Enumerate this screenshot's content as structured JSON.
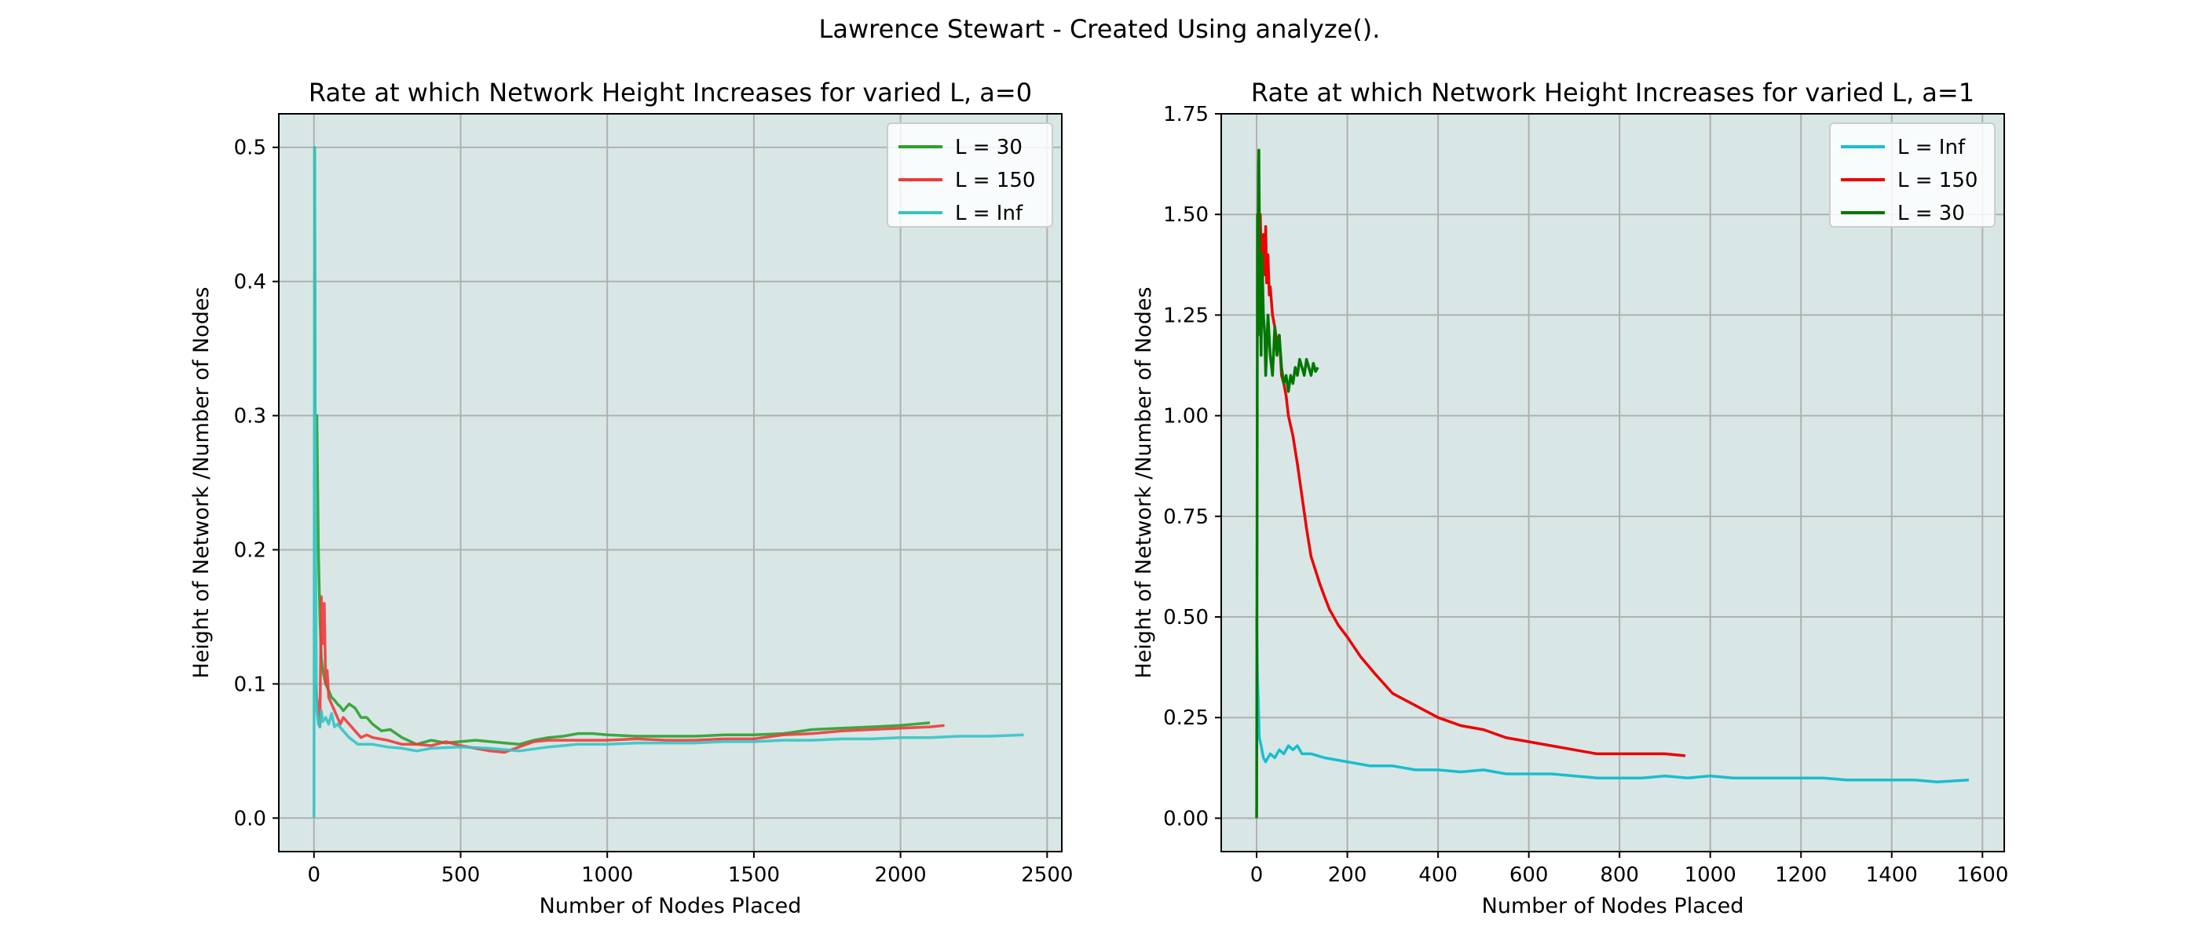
{
  "figure": {
    "suptitle": "Lawrence Stewart - Created Using analyze()."
  },
  "chart_data": [
    {
      "type": "line",
      "title": "Rate at which Network Height Increases for varied L, a=0",
      "xlabel": "Number of Nodes Placed",
      "ylabel": "Height of Network /Number of Nodes",
      "xlim": [
        -120,
        2550
      ],
      "ylim": [
        -0.025,
        0.525
      ],
      "xticks": [
        0,
        500,
        1000,
        1500,
        2000,
        2500
      ],
      "xtick_labels": [
        "0",
        "500",
        "1000",
        "1500",
        "2000",
        "2500"
      ],
      "yticks": [
        0.0,
        0.1,
        0.2,
        0.3,
        0.4,
        0.5
      ],
      "ytick_labels": [
        "0.0",
        "0.1",
        "0.2",
        "0.3",
        "0.4",
        "0.5"
      ],
      "grid": true,
      "facecolor": "#d8e6e6",
      "legend_position": "upper right",
      "series": [
        {
          "name": "L = 30",
          "color": "#2ca02c",
          "x": [
            0,
            2,
            4,
            6,
            10,
            15,
            20,
            25,
            30,
            40,
            50,
            60,
            70,
            80,
            90,
            100,
            120,
            140,
            160,
            180,
            200,
            230,
            260,
            300,
            350,
            400,
            450,
            500,
            550,
            600,
            650,
            700,
            750,
            800,
            850,
            900,
            950,
            1000,
            1100,
            1200,
            1300,
            1400,
            1500,
            1600,
            1700,
            1800,
            1900,
            2000,
            2100
          ],
          "y": [
            0.5,
            0.5,
            0.3,
            0.3,
            0.3,
            0.2,
            0.15,
            0.12,
            0.11,
            0.1,
            0.095,
            0.09,
            0.088,
            0.085,
            0.083,
            0.08,
            0.085,
            0.082,
            0.075,
            0.075,
            0.07,
            0.065,
            0.066,
            0.06,
            0.055,
            0.058,
            0.056,
            0.057,
            0.058,
            0.057,
            0.056,
            0.055,
            0.058,
            0.06,
            0.061,
            0.063,
            0.063,
            0.062,
            0.061,
            0.061,
            0.061,
            0.062,
            0.062,
            0.063,
            0.066,
            0.067,
            0.068,
            0.069,
            0.071
          ]
        },
        {
          "name": "L = 150",
          "color": "#ef3a3a",
          "x": [
            5,
            10,
            15,
            20,
            25,
            30,
            35,
            40,
            45,
            50,
            60,
            70,
            80,
            90,
            100,
            120,
            140,
            160,
            180,
            200,
            250,
            300,
            350,
            400,
            450,
            500,
            550,
            600,
            650,
            700,
            750,
            800,
            900,
            1000,
            1100,
            1200,
            1300,
            1400,
            1500,
            1600,
            1700,
            1800,
            1900,
            2000,
            2100,
            2150
          ],
          "y": [
            0.1,
            0.09,
            0.08,
            0.068,
            0.165,
            0.13,
            0.16,
            0.1,
            0.11,
            0.09,
            0.085,
            0.08,
            0.075,
            0.07,
            0.075,
            0.07,
            0.065,
            0.06,
            0.062,
            0.06,
            0.058,
            0.055,
            0.055,
            0.054,
            0.057,
            0.054,
            0.052,
            0.05,
            0.049,
            0.053,
            0.057,
            0.058,
            0.058,
            0.058,
            0.059,
            0.058,
            0.058,
            0.059,
            0.059,
            0.062,
            0.063,
            0.065,
            0.066,
            0.067,
            0.068,
            0.069
          ]
        },
        {
          "name": "L = Inf",
          "color": "#34c4c4",
          "x": [
            0,
            2,
            4,
            6,
            8,
            10,
            15,
            20,
            25,
            30,
            40,
            50,
            60,
            70,
            80,
            100,
            120,
            150,
            200,
            250,
            300,
            350,
            400,
            500,
            600,
            700,
            800,
            900,
            1000,
            1100,
            1200,
            1300,
            1400,
            1500,
            1600,
            1700,
            1800,
            1900,
            2000,
            2100,
            2200,
            2300,
            2420
          ],
          "y": [
            0.0,
            0.5,
            0.3,
            0.2,
            0.1,
            0.08,
            0.07,
            0.068,
            0.08,
            0.072,
            0.075,
            0.07,
            0.078,
            0.068,
            0.07,
            0.065,
            0.06,
            0.055,
            0.055,
            0.053,
            0.052,
            0.05,
            0.052,
            0.053,
            0.052,
            0.05,
            0.053,
            0.055,
            0.055,
            0.056,
            0.056,
            0.056,
            0.057,
            0.057,
            0.058,
            0.058,
            0.059,
            0.059,
            0.06,
            0.06,
            0.061,
            0.061,
            0.062
          ]
        }
      ]
    },
    {
      "type": "line",
      "title": "Rate at which Network Height Increases for varied L, a=1",
      "xlabel": "Number of Nodes Placed",
      "ylabel": "Height of Network /Number of Nodes",
      "xlim": [
        -78,
        1648
      ],
      "ylim": [
        -0.083,
        1.75
      ],
      "xticks": [
        0,
        200,
        400,
        600,
        800,
        1000,
        1200,
        1400,
        1600
      ],
      "xtick_labels": [
        "0",
        "200",
        "400",
        "600",
        "800",
        "1000",
        "1200",
        "1400",
        "1600"
      ],
      "yticks": [
        0.0,
        0.25,
        0.5,
        0.75,
        1.0,
        1.25,
        1.5,
        1.75
      ],
      "ytick_labels": [
        "0.00",
        "0.25",
        "0.50",
        "0.75",
        "1.00",
        "1.25",
        "1.50",
        "1.75"
      ],
      "grid": true,
      "facecolor": "#d8e6e6",
      "legend_position": "upper right",
      "series": [
        {
          "name": "L = Inf",
          "color": "#17becf",
          "x": [
            0,
            2,
            4,
            6,
            10,
            15,
            20,
            30,
            40,
            50,
            60,
            70,
            80,
            90,
            100,
            120,
            150,
            200,
            250,
            300,
            350,
            400,
            450,
            500,
            550,
            600,
            650,
            700,
            750,
            800,
            850,
            900,
            950,
            1000,
            1050,
            1100,
            1150,
            1200,
            1250,
            1300,
            1350,
            1400,
            1450,
            1500,
            1570
          ],
          "y": [
            0.5,
            0.35,
            0.28,
            0.2,
            0.18,
            0.15,
            0.14,
            0.16,
            0.15,
            0.17,
            0.16,
            0.18,
            0.17,
            0.18,
            0.16,
            0.16,
            0.15,
            0.14,
            0.13,
            0.13,
            0.12,
            0.12,
            0.115,
            0.12,
            0.11,
            0.11,
            0.11,
            0.105,
            0.1,
            0.1,
            0.1,
            0.105,
            0.1,
            0.105,
            0.1,
            0.1,
            0.1,
            0.1,
            0.1,
            0.095,
            0.095,
            0.095,
            0.095,
            0.09,
            0.095
          ]
        },
        {
          "name": "L = 150",
          "color": "#ee0000",
          "x": [
            5,
            8,
            10,
            12,
            15,
            18,
            20,
            22,
            25,
            28,
            30,
            35,
            40,
            45,
            50,
            55,
            60,
            65,
            70,
            80,
            90,
            100,
            110,
            120,
            140,
            160,
            180,
            200,
            230,
            260,
            300,
            350,
            400,
            450,
            500,
            550,
            600,
            650,
            700,
            750,
            800,
            850,
            900,
            945
          ],
          "y": [
            1.35,
            1.5,
            1.4,
            1.3,
            1.45,
            1.35,
            1.47,
            1.33,
            1.4,
            1.3,
            1.32,
            1.25,
            1.22,
            1.18,
            1.2,
            1.1,
            1.08,
            1.05,
            1.0,
            0.95,
            0.88,
            0.8,
            0.72,
            0.65,
            0.58,
            0.52,
            0.48,
            0.45,
            0.4,
            0.36,
            0.31,
            0.28,
            0.25,
            0.23,
            0.22,
            0.2,
            0.19,
            0.18,
            0.17,
            0.16,
            0.16,
            0.16,
            0.16,
            0.155
          ]
        },
        {
          "name": "L = 30",
          "color": "#007700",
          "x": [
            0,
            2,
            3,
            4,
            5,
            6,
            8,
            10,
            12,
            15,
            18,
            20,
            25,
            30,
            35,
            40,
            45,
            50,
            55,
            60,
            65,
            70,
            75,
            80,
            85,
            90,
            95,
            100,
            105,
            110,
            115,
            120,
            125,
            130,
            135
          ],
          "y": [
            0.0,
            1.5,
            1.2,
            1.6,
            1.66,
            1.5,
            1.3,
            1.15,
            1.4,
            1.25,
            1.2,
            1.1,
            1.25,
            1.15,
            1.1,
            1.22,
            1.15,
            1.2,
            1.12,
            1.08,
            1.1,
            1.06,
            1.1,
            1.08,
            1.12,
            1.1,
            1.14,
            1.12,
            1.1,
            1.14,
            1.12,
            1.1,
            1.13,
            1.11,
            1.12
          ]
        }
      ]
    }
  ]
}
